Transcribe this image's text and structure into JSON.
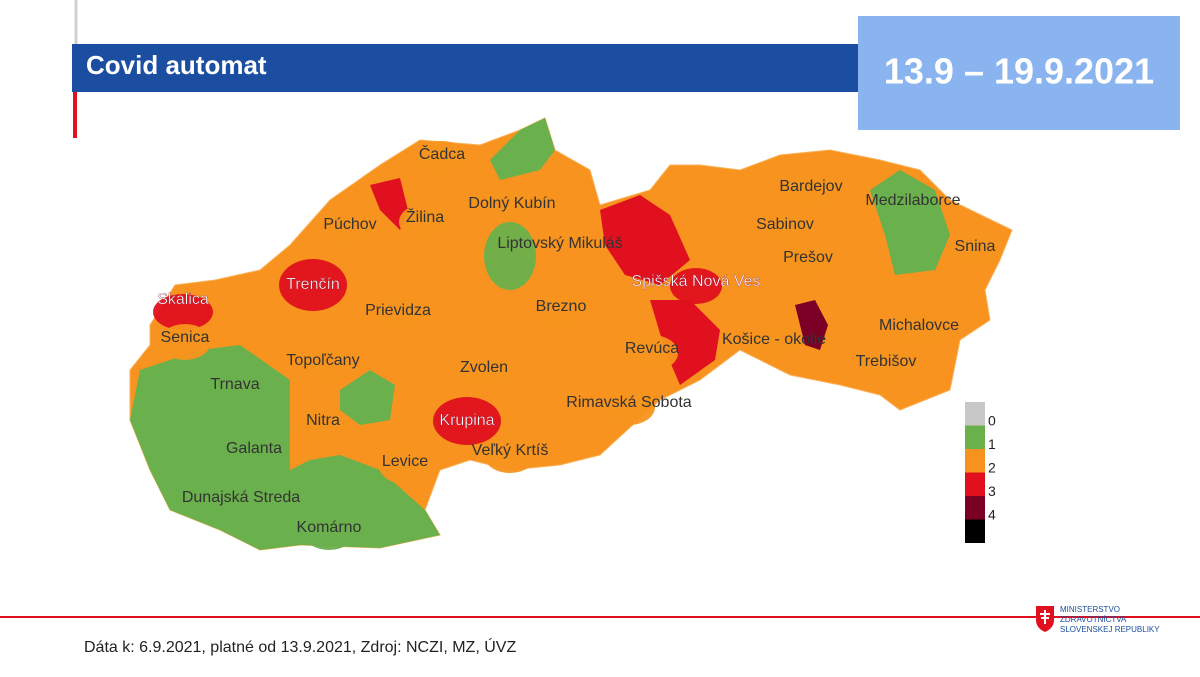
{
  "header": {
    "title": "Covid automat",
    "date_range": "13.9 – 19.9.2021"
  },
  "legend": [
    {
      "label": "0",
      "color": "#c8c8c8"
    },
    {
      "label": "1",
      "color": "#6ab04c"
    },
    {
      "label": "2",
      "color": "#f7931e"
    },
    {
      "label": "3",
      "color": "#e0101e"
    },
    {
      "label": "4",
      "color": "#7a0026"
    },
    {
      "label": "",
      "color": "#000000"
    }
  ],
  "districts": [
    {
      "name": "Čadca",
      "level": 2
    },
    {
      "name": "Žilina",
      "level": 2
    },
    {
      "name": "Púchov",
      "level": 2
    },
    {
      "name": "Dolný Kubín",
      "level": 2
    },
    {
      "name": "Liptovský Mikuláš",
      "level": 1
    },
    {
      "name": "Trenčín",
      "level": 3
    },
    {
      "name": "Skalica",
      "level": 3
    },
    {
      "name": "Senica",
      "level": 2
    },
    {
      "name": "Prievidza",
      "level": 2
    },
    {
      "name": "Topoľčany",
      "level": 2
    },
    {
      "name": "Trnava",
      "level": 1
    },
    {
      "name": "Nitra",
      "level": 2
    },
    {
      "name": "Galanta",
      "level": 1
    },
    {
      "name": "Dunajská Streda",
      "level": 1
    },
    {
      "name": "Komárno",
      "level": 1
    },
    {
      "name": "Levice",
      "level": 2
    },
    {
      "name": "Zvolen",
      "level": 2
    },
    {
      "name": "Krupina",
      "level": 3
    },
    {
      "name": "Veľký Krtíš",
      "level": 2
    },
    {
      "name": "Brezno",
      "level": 2
    },
    {
      "name": "Rimavská Sobota",
      "level": 2
    },
    {
      "name": "Revúca",
      "level": 2
    },
    {
      "name": "Spišská Nová Ves",
      "level": 3
    },
    {
      "name": "Košice - okolie",
      "level": 2
    },
    {
      "name": "Bardejov",
      "level": 2
    },
    {
      "name": "Sabinov",
      "level": 2
    },
    {
      "name": "Prešov",
      "level": 2
    },
    {
      "name": "Medzilaborce",
      "level": 1
    },
    {
      "name": "Snina",
      "level": 2
    },
    {
      "name": "Michalovce",
      "level": 2
    },
    {
      "name": "Trebišov",
      "level": 2
    }
  ],
  "footer": {
    "source": "Dáta k: 6.9.2021, platné od 13.9.2021, Zdroj: NCZI, MZ, ÚVZ",
    "ministry": [
      "MINISTERSTVO",
      "ZDRAVOTNÍCTVA",
      "SLOVENSKEJ REPUBLIKY"
    ]
  }
}
